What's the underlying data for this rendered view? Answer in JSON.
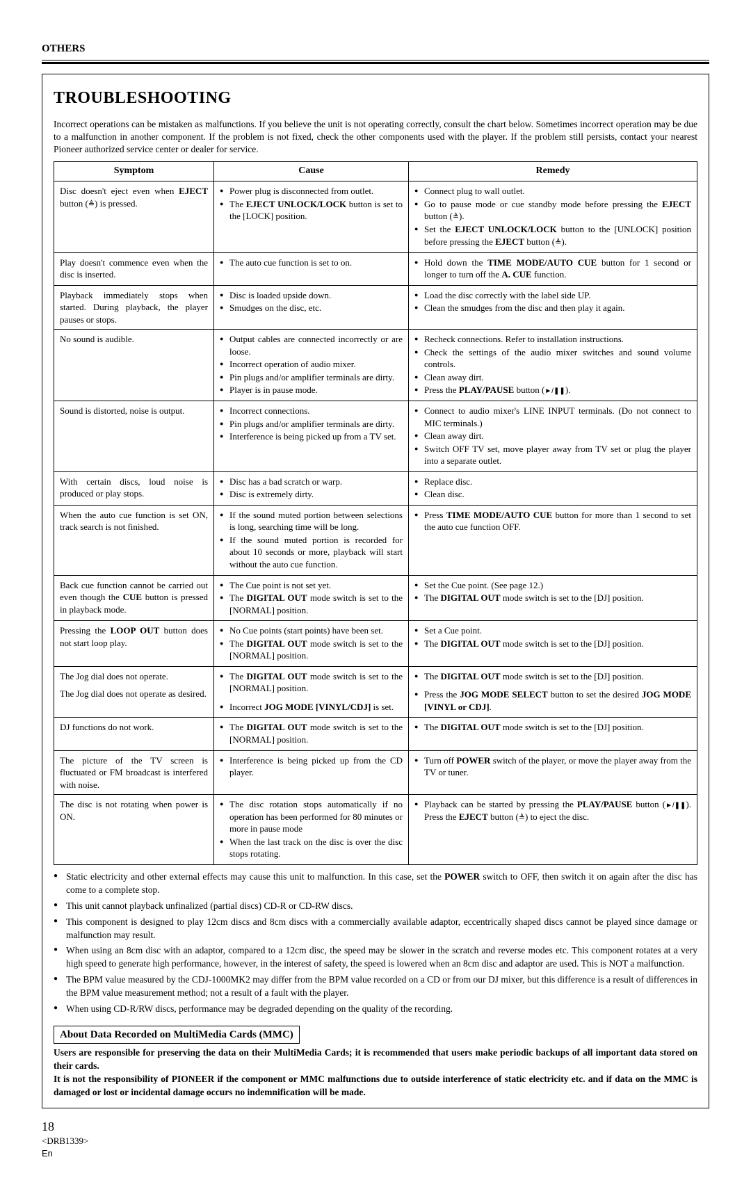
{
  "section_header": "OTHERS",
  "title": "TROUBLESHOOTING",
  "intro": "Incorrect operations can be mistaken as malfunctions. If you believe the unit is not operating correctly, consult the chart below. Sometimes incorrect operation may be due to a malfunction in another component. If the problem is not fixed, check the other components used with the player. If the problem still persists, contact your nearest Pioneer authorized service center or dealer for service.",
  "headers": {
    "symptom": "Symptom",
    "cause": "Cause",
    "remedy": "Remedy"
  },
  "rows": [
    {
      "symptom": "Disc doesn't eject even when <b>EJECT</b> button (<span class='eject-sym'>≜</span>) is pressed.",
      "causes": [
        "Power plug is disconnected from outlet.",
        "The <b>EJECT UNLOCK/LOCK</b> button is set to the [LOCK] position."
      ],
      "remedies": [
        "Connect plug to wall outlet.",
        "Go to pause mode or cue standby mode before pressing the <b>EJECT</b> button (<span class='eject-sym'>≜</span>).",
        "Set the <b>EJECT UNLOCK/LOCK</b> button to the [UNLOCK] position before pressing the <b>EJECT</b> button (<span class='eject-sym'>≜</span>)."
      ]
    },
    {
      "symptom": "Play doesn't commence even when the disc is inserted.",
      "causes": [
        "The auto cue function is set to on."
      ],
      "remedies": [
        "Hold down the <b>TIME MODE/AUTO CUE</b> button for 1 second or longer to turn off the <b>A. CUE</b> function."
      ]
    },
    {
      "symptom": "Playback immediately stops when started. During playback, the player pauses or stops.",
      "causes": [
        "Disc is loaded upside down.",
        "Smudges on the disc, etc."
      ],
      "remedies": [
        "Load the disc correctly with the label side UP.",
        "Clean the smudges from the disc and then play it again."
      ]
    },
    {
      "symptom": "No sound is audible.",
      "causes": [
        "Output cables are connected incorrectly or are loose.",
        "Incorrect operation of audio mixer.",
        "Pin plugs and/or amplifier terminals are dirty.",
        "Player is in pause mode."
      ],
      "remedies": [
        "Recheck connections. Refer to installation instructions.",
        "Check the settings of the audio mixer switches and sound volume controls.",
        "Clean away dirt.",
        "Press the <b>PLAY/PAUSE</b> button (<span class='pp-sym'>►/❚❚</span>)."
      ]
    },
    {
      "symptom": "Sound is distorted, noise is output.",
      "causes": [
        "Incorrect connections.",
        "Pin plugs and/or amplifier terminals are dirty.",
        "Interference is being picked up from a TV set."
      ],
      "remedies": [
        "Connect to audio mixer's LINE INPUT terminals. (Do not connect to MIC terminals.)",
        "Clean away dirt.",
        "Switch OFF TV set, move player away from TV set or plug the player into a separate outlet."
      ]
    },
    {
      "symptom": "With certain discs, loud noise is produced or play stops.",
      "causes": [
        "Disc has a bad scratch or warp.",
        "Disc is extremely dirty."
      ],
      "remedies": [
        "Replace disc.",
        "Clean disc."
      ]
    },
    {
      "symptom": "When the auto cue function is set ON, track search is not finished.",
      "causes": [
        "If the sound muted portion between selections is long, searching time will be long.",
        "If the sound muted portion is recorded for about 10 seconds or more, playback will start without the auto cue function."
      ],
      "remedies": [
        "Press <b>TIME MODE/AUTO CUE</b> button for more than 1 second to set the auto cue function OFF."
      ]
    },
    {
      "symptom": "Back cue function cannot be carried out even though the <b>CUE</b> button is pressed in playback mode.",
      "causes": [
        "The Cue point is not set yet.",
        "The <b>DIGITAL OUT</b> mode switch is set to the [NORMAL] position."
      ],
      "remedies": [
        "Set the Cue point.  (See page 12.)",
        "The <b>DIGITAL OUT</b> mode switch is set to the [DJ] position."
      ]
    },
    {
      "symptom": "Pressing the <b>LOOP OUT</b> button does not start loop play.",
      "causes": [
        "No Cue points (start points) have been set.",
        "The <b>DIGITAL OUT</b> mode switch is set to the [NORMAL] position."
      ],
      "remedies": [
        "Set a Cue point.",
        "The <b>DIGITAL OUT</b> mode switch is set to the [DJ] position."
      ]
    },
    {
      "symptom": "The Jog dial does not operate.",
      "causes": [
        "The <b>DIGITAL OUT</b> mode switch is set to the [NORMAL] position."
      ],
      "remedies": [
        "The <b>DIGITAL OUT</b> mode switch is set to the [DJ] position."
      ]
    },
    {
      "symptom": "The Jog dial does not operate as desired.",
      "causes": [
        "Incorrect <b>JOG MODE [VINYL/CDJ]</b> is set."
      ],
      "remedies": [
        "Press the <b>JOG MODE SELECT</b> button to set the desired <b>JOG MODE [VINYL or CDJ]</b>."
      ]
    },
    {
      "symptom": "DJ functions do not work.",
      "causes": [
        "The <b>DIGITAL OUT</b> mode switch is set to the [NORMAL] position."
      ],
      "remedies": [
        "The <b>DIGITAL OUT</b> mode switch is set to the [DJ] position."
      ]
    },
    {
      "symptom": "The picture of the TV screen is fluctuated or FM broadcast is interfered with noise.",
      "causes": [
        "Interference is being picked up from the CD player."
      ],
      "remedies": [
        "Turn off <b>POWER</b> switch of the player, or move the player away from the TV or tuner."
      ]
    },
    {
      "symptom": "The disc is not rotating when power is ON.",
      "causes": [
        "The disc rotation stops automatically if no operation has been performed for 80 minutes or more in pause mode",
        "When the last track on the disc is over the disc stops rotating."
      ],
      "remedies": [
        "Playback can be started by pressing the <b>PLAY/PAUSE</b> button (<span class='pp-sym'>►/❚❚</span>). Press the <b>EJECT</b> button (<span class='eject-sym'>≜</span>) to eject the disc."
      ]
    }
  ],
  "notes": [
    "Static electricity and other external effects may cause this unit to malfunction. In this case, set the <b>POWER</b> switch to OFF, then switch it on again after the disc has come to a complete stop.",
    "This unit cannot playback unfinalized (partial discs) CD-R or CD-RW discs.",
    "This component is designed to play 12cm discs and 8cm discs with a commercially available adaptor, eccentrically shaped discs cannot be played since damage or malfunction may result.",
    "When using an 8cm disc with an adaptor, compared to a 12cm disc, the speed may be slower in the scratch and reverse modes etc. This component rotates at a very high speed to generate high performance, however, in the interest of safety, the speed is lowered when an 8cm disc and adaptor are used. This is NOT a malfunction.",
    "The BPM value measured by the CDJ-1000MK2 may differ from the BPM value recorded on a CD or from our DJ mixer, but this difference is a result of differences in the BPM value measurement method; not a result of a fault with the player.",
    "When using CD-R/RW discs, performance may be degraded depending on the quality of the recording."
  ],
  "about_title": "About Data Recorded on MultiMedia Cards (MMC)",
  "about_p1": "Users are responsible for preserving the data on their MultiMedia Cards; it is recommended that users make periodic backups of all important data stored on their cards.",
  "about_p2": "It is not the responsibility of PIONEER if the component or MMC malfunctions due to outside interference of static electricity etc. and if data on the MMC is damaged or lost or incidental damage occurs no indemnification will be made.",
  "page_number": "18",
  "model_code": "<DRB1339>",
  "lang": "En"
}
